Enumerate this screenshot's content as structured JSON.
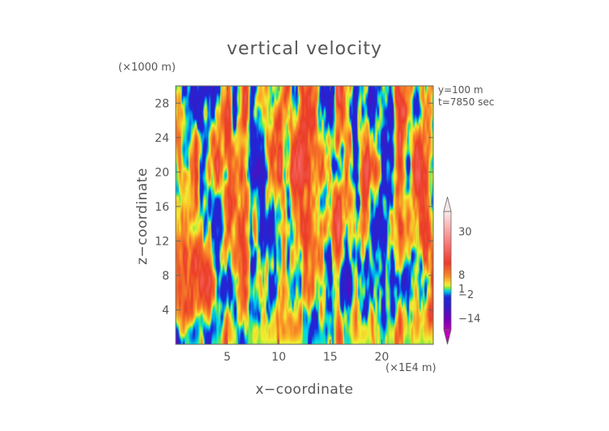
{
  "chart_data": {
    "type": "heatmap",
    "title": "vertical velocity",
    "xlabel": "x−coordinate",
    "ylabel": "z−coordinate",
    "x_unit_label": "(×1E4 m)",
    "y_unit_label": "(×1000 m)",
    "xlim": [
      0,
      25
    ],
    "ylim": [
      0,
      30
    ],
    "x_ticks": [
      5,
      10,
      15,
      20
    ],
    "x_tick_labels": [
      "5",
      "10",
      "15",
      "20"
    ],
    "y_ticks": [
      4,
      8,
      12,
      16,
      20,
      24,
      28
    ],
    "y_tick_labels": [
      "4",
      "8",
      "12",
      "16",
      "20",
      "24",
      "28"
    ],
    "annotations": [
      "y=100 m",
      "t=7850 sec"
    ],
    "field_range": [
      -20,
      40
    ],
    "colorbar": {
      "orientation": "vertical",
      "extend": "both",
      "label_values": [
        30,
        8,
        1,
        -2,
        -14
      ],
      "labels": [
        "30",
        "8",
        "1",
        "−2",
        "−14"
      ]
    }
  },
  "colors": {
    "text": "#555555",
    "axis": "#666666",
    "background_low": "#40e080",
    "upper_triangle": "#f8e8e8",
    "lower_triangle": "#c000c0"
  }
}
